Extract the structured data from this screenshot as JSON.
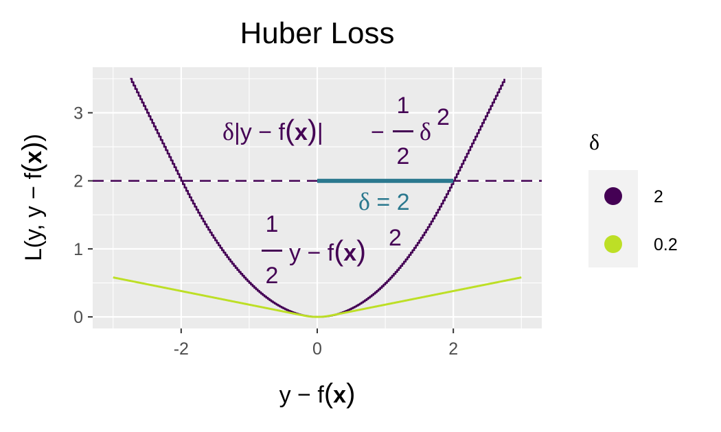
{
  "chart_data": {
    "type": "line",
    "title": "Huber Loss",
    "xlabel": "y − f(x)",
    "ylabel": "L(y, y − f(x))",
    "xlim": [
      -3.3,
      3.3
    ],
    "ylim": [
      -0.17,
      3.67
    ],
    "x_ticks": [
      -2,
      0,
      2
    ],
    "x_tick_labels": [
      "-2",
      "0",
      "2"
    ],
    "y_ticks": [
      0,
      1,
      2,
      3
    ],
    "y_tick_labels": [
      "0",
      "1",
      "2",
      "3"
    ],
    "grid": true,
    "legend": {
      "title": "δ",
      "placement": "right",
      "entries": [
        {
          "label": "2",
          "color": "#440154"
        },
        {
          "label": "0.2",
          "color": "#bddf26"
        }
      ]
    },
    "series": [
      {
        "name": "2",
        "delta": 2,
        "color": "#440154",
        "x_range": [
          -2.75,
          2.75
        ],
        "style": "stepped"
      },
      {
        "name": "0.2",
        "delta": 0.2,
        "color": "#bddf26",
        "x_range": [
          -3,
          3
        ],
        "style": "solid"
      }
    ],
    "reference_lines": [
      {
        "orientation": "horizontal",
        "y": 2,
        "style": "dashed",
        "color": "#440154"
      }
    ],
    "segments": [
      {
        "x": [
          0,
          2
        ],
        "y": [
          2,
          2
        ],
        "color": "#2a788e",
        "label": "δ = 2"
      }
    ],
    "annotations": {
      "linear_part": {
        "text": "δ|y − f(x)| − ½ δ²",
        "x": -0.1,
        "y": 2.9,
        "color": "#440154"
      },
      "quadratic_part": {
        "text": "½ y − f(x)²",
        "x": 0.1,
        "y": 1.0,
        "color": "#440154"
      },
      "delta_label": {
        "text": "δ = 2",
        "x": 1.05,
        "y": 1.7,
        "color": "#2a788e"
      }
    }
  }
}
